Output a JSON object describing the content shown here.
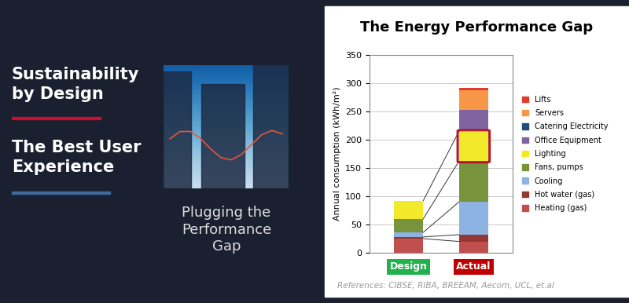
{
  "slide": {
    "heading1": "Sustainability\nby Design",
    "heading2": "The Best User\nExperience",
    "caption": "Plugging the\nPerformance\nGap",
    "references": "References: CIBSE, RIBA, BREEAM, Aecom, UCL, et.al"
  },
  "chart_data": {
    "type": "bar",
    "stacked": true,
    "title": "The Energy Performance Gap",
    "y_label": "Annual consumption (kWh/m²)",
    "categories": [
      "Design",
      "Actual"
    ],
    "series": [
      {
        "name": "Heating (gas)",
        "color": "#c0504d",
        "values": [
          25,
          20
        ]
      },
      {
        "name": "Hot water (gas)",
        "color": "#953735",
        "values": [
          3,
          12
        ]
      },
      {
        "name": "Cooling",
        "color": "#8db3e2",
        "values": [
          8,
          58
        ]
      },
      {
        "name": "Fans, pumps",
        "color": "#77933c",
        "values": [
          24,
          72
        ]
      },
      {
        "name": "Lighting",
        "color": "#f2e92a",
        "values": [
          32,
          53
        ]
      },
      {
        "name": "Office Equipment",
        "color": "#8064a2",
        "values": [
          0,
          38
        ]
      },
      {
        "name": "Catering Electricity",
        "color": "#1f4e79",
        "values": [
          0,
          0
        ]
      },
      {
        "name": "Servers",
        "color": "#f79646",
        "values": [
          0,
          34
        ]
      },
      {
        "name": "Lifts",
        "color": "#e03c31",
        "values": [
          0,
          5
        ]
      }
    ],
    "ylim": [
      0,
      350
    ],
    "yticks": [
      0,
      50,
      100,
      150,
      200,
      250,
      300,
      350
    ],
    "grid": true,
    "legend": "right"
  }
}
